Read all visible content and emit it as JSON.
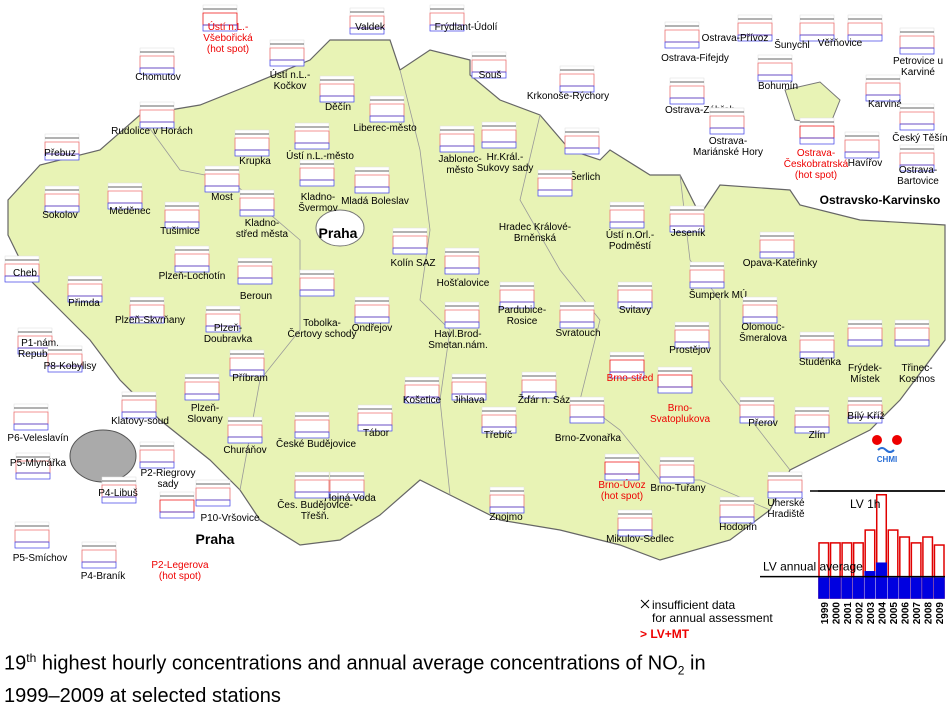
{
  "stations": [
    {
      "lines": [
        "Valdek"
      ]
    },
    {
      "lines": [
        "Frýdlant-Údolí"
      ]
    },
    {
      "lines": [
        "Chomutov"
      ]
    },
    {
      "lines": [
        "Ústí n.L.-",
        "Všebořická",
        "(hot spot)"
      ],
      "hot_spot": true
    },
    {
      "lines": [
        "Ústí n.L.-",
        "Kočkov"
      ]
    },
    {
      "lines": [
        "Souš"
      ]
    },
    {
      "lines": [
        "Děčín"
      ]
    },
    {
      "lines": [
        "Krkonoše-Rýchory"
      ]
    },
    {
      "lines": [
        "Rudolice v Horách"
      ]
    },
    {
      "lines": [
        "Liberec-město"
      ]
    },
    {
      "lines": [
        "Přebuz"
      ]
    },
    {
      "lines": [
        "Krupka"
      ]
    },
    {
      "lines": [
        "Ústí n.L.-město"
      ]
    },
    {
      "lines": [
        "Jablonec-",
        "město"
      ]
    },
    {
      "lines": [
        "Hr.Král.-",
        "Sukovy sady"
      ]
    },
    {
      "lines": [
        "Šerlich"
      ]
    },
    {
      "lines": [
        "Kladno-",
        "Švermov"
      ]
    },
    {
      "lines": [
        "Sokolov"
      ]
    },
    {
      "lines": [
        "Měděnec"
      ]
    },
    {
      "lines": [
        "Most"
      ]
    },
    {
      "lines": [
        "Mladá Boleslav"
      ]
    },
    {
      "lines": [
        "Hradec Králové-",
        "Brněnská"
      ]
    },
    {
      "lines": [
        "Tušimice"
      ]
    },
    {
      "lines": [
        "Kladno-",
        "střed města"
      ]
    },
    {
      "lines": [
        "Ústí n.Orl.-",
        "Podměstí"
      ]
    },
    {
      "lines": [
        "Jeseník"
      ]
    },
    {
      "lines": [
        "Kolín SAZ"
      ]
    },
    {
      "lines": [
        "Cheb"
      ]
    },
    {
      "lines": [
        "Plzeň-Lochotín"
      ]
    },
    {
      "lines": [
        "Opava-Kateřinky"
      ]
    },
    {
      "lines": [
        "Hošťalovice"
      ]
    },
    {
      "lines": [
        "Beroun"
      ]
    },
    {
      "lines": [
        "Šumperk MÚ"
      ]
    },
    {
      "lines": [
        "Přimda"
      ]
    },
    {
      "lines": [
        "Plzeň-Skvrňany"
      ]
    },
    {
      "lines": [
        "Tobolka-",
        "Čertovy schody"
      ]
    },
    {
      "lines": [
        "Ondřejov"
      ]
    },
    {
      "lines": [
        "Pardubice-",
        "Rosice"
      ]
    },
    {
      "lines": [
        "Svitavy"
      ]
    },
    {
      "lines": [
        "Havl.Brod-",
        "Smetan.nám."
      ]
    },
    {
      "lines": [
        "Svratouch"
      ]
    },
    {
      "lines": [
        "Olomouc-",
        "Šmeralova"
      ]
    },
    {
      "lines": [
        "P1-nám.",
        "Republiky"
      ]
    },
    {
      "lines": [
        "Plzeň-",
        "Doubravka"
      ]
    },
    {
      "lines": [
        "Prostějov"
      ]
    },
    {
      "lines": [
        "Studénka"
      ]
    },
    {
      "lines": [
        "Frýdek-",
        "Místek"
      ]
    },
    {
      "lines": [
        "Třinec-",
        "Kosmos"
      ]
    },
    {
      "lines": [
        "Příbram"
      ]
    },
    {
      "lines": [
        "P8-Kobylisy"
      ]
    },
    {
      "lines": [
        "Brno-střed"
      ],
      "hot_spot": true
    },
    {
      "lines": [
        "Košetice"
      ]
    },
    {
      "lines": [
        "Jihlava"
      ]
    },
    {
      "lines": [
        "Žďár n. Sáz"
      ]
    },
    {
      "lines": [
        "Klatovy-soud"
      ]
    },
    {
      "lines": [
        "Plzeň-",
        "Slovany"
      ]
    },
    {
      "lines": [
        "Brno-",
        "Svatoplukova"
      ],
      "hot_spot": true
    },
    {
      "lines": [
        "Bílý Kříž"
      ]
    },
    {
      "lines": [
        "P6-Veleslavín"
      ]
    },
    {
      "lines": [
        "Tábor"
      ]
    },
    {
      "lines": [
        "Brno-Zvonařka"
      ]
    },
    {
      "lines": [
        "Přerov"
      ]
    },
    {
      "lines": [
        "Zlín"
      ]
    },
    {
      "lines": [
        "České Budějovice"
      ]
    },
    {
      "lines": [
        "Churáňov"
      ]
    },
    {
      "lines": [
        "Třebíč"
      ]
    },
    {
      "lines": [
        "P5-Mlynářka"
      ]
    },
    {
      "lines": [
        "P2-Riegrovy",
        "sady"
      ]
    },
    {
      "lines": [
        "Brno-Úvoz",
        "(hot spot)"
      ],
      "hot_spot": true
    },
    {
      "lines": [
        "Brno-Tuřany"
      ]
    },
    {
      "lines": [
        "Hojná Voda"
      ]
    },
    {
      "lines": [
        "Čes. Budějovice-",
        "Třešň."
      ]
    },
    {
      "lines": [
        "P4-Libuš"
      ]
    },
    {
      "lines": [
        "Uherské",
        "Hradiště"
      ]
    },
    {
      "lines": [
        "P10-Vršovice"
      ]
    },
    {
      "lines": [
        "Znojmo"
      ]
    },
    {
      "lines": [
        "Hodonín"
      ]
    },
    {
      "lines": [
        "Mikulov-Sedlec"
      ]
    },
    {
      "lines": [
        "P5-Smíchov"
      ]
    },
    {
      "lines": [
        "P4-Braník"
      ]
    },
    {
      "lines": [
        "P2-Legerova",
        "(hot spot)"
      ],
      "hot_spot": true
    },
    {
      "lines": [
        "Ostrava-Přívoz"
      ]
    },
    {
      "lines": [
        "Šunychl"
      ]
    },
    {
      "lines": [
        "Věřňovice"
      ]
    },
    {
      "lines": [
        "Ostrava-Fifejdy"
      ]
    },
    {
      "lines": [
        "Petrovice u",
        "Karviné"
      ]
    },
    {
      "lines": [
        "Bohumín"
      ]
    },
    {
      "lines": [
        "Ostrava-Zábřeh"
      ]
    },
    {
      "lines": [
        "Karviná"
      ]
    },
    {
      "lines": [
        "Ostrava-",
        "Mariánské Hory"
      ]
    },
    {
      "lines": [
        "Ostrava-",
        "Českobratrská",
        "(hot spot)"
      ],
      "hot_spot": true
    },
    {
      "lines": [
        "Havířov"
      ]
    },
    {
      "lines": [
        "Český Těšín"
      ]
    },
    {
      "lines": [
        "Ostrava-",
        "Bartovice"
      ]
    }
  ],
  "regions": [
    "Praha",
    "Praha",
    "Ostravsko-Karvinsko"
  ],
  "logo": "CHMI",
  "legend": {
    "chart_data": {
      "type": "bar",
      "categories": [
        "1999",
        "2000",
        "2001",
        "2002",
        "2003",
        "2004",
        "2005",
        "2006",
        "2007",
        "2008",
        "2009"
      ],
      "series": [
        {
          "color": "#e00000",
          "values": [
            103,
            103,
            103,
            103,
            127,
            193,
            127,
            114,
            103,
            114,
            99
          ]
        },
        {
          "color": "#0000e0",
          "values": [
            37,
            37,
            37,
            37,
            49,
            65,
            37,
            37,
            37,
            37,
            37
          ]
        }
      ],
      "ylim": [
        0,
        200
      ],
      "limit_lines": [
        {
          "label": "LV 1h",
          "value": 200
        },
        {
          "label": "LV annual average",
          "value": 40
        }
      ]
    },
    "insufficient": [
      "insufficient data",
      "for annual assessment"
    ],
    "exceed": "> LV+MT"
  },
  "caption": {
    "parts": [
      "19",
      "th",
      " highest hourly concentrations and annual average concentrations of NO",
      "2",
      " in",
      "1999–2009 at selected stations"
    ]
  }
}
